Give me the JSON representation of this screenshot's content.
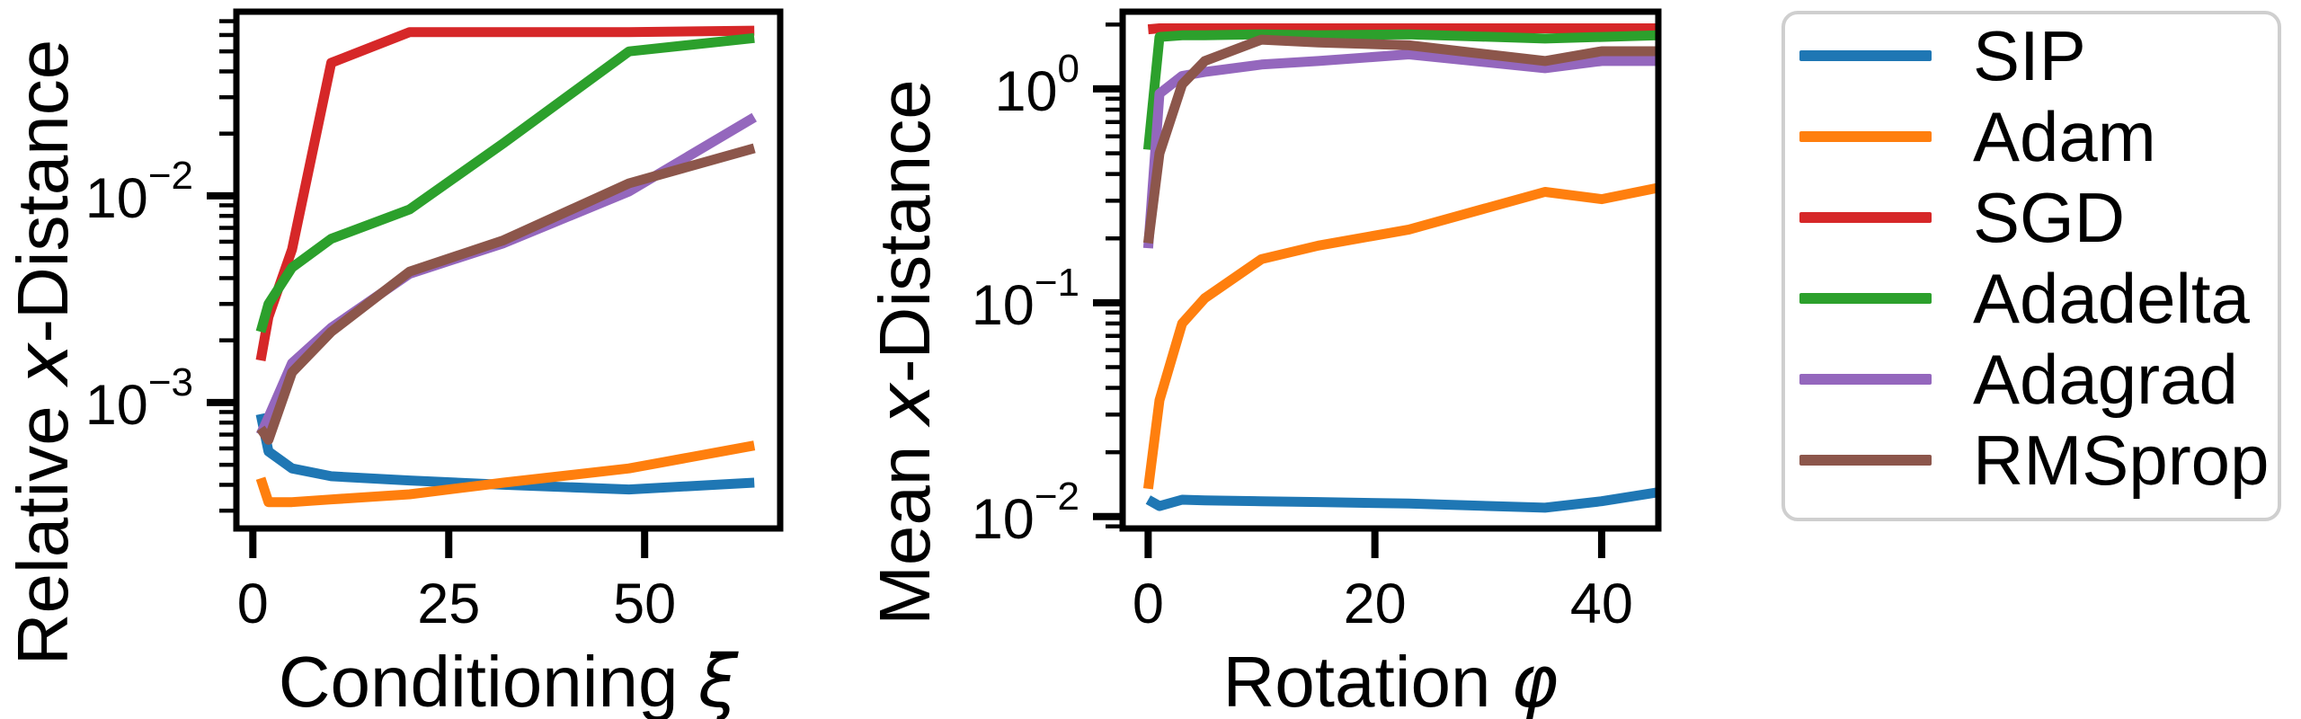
{
  "figure": {
    "background": "#ffffff",
    "text_color": "#000000"
  },
  "legend": {
    "position": "right",
    "border_color": "#cfcfcf",
    "entries": [
      {
        "label": "SIP",
        "color": "#1f77b4"
      },
      {
        "label": "Adam",
        "color": "#ff7f0e"
      },
      {
        "label": "SGD",
        "color": "#d62728"
      },
      {
        "label": "Adadelta",
        "color": "#2ca02c"
      },
      {
        "label": "Adagrad",
        "color": "#9467bd"
      },
      {
        "label": "RMSprop",
        "color": "#8c564b"
      }
    ]
  },
  "chart_data": [
    {
      "type": "line",
      "title": "",
      "xlabel": "Conditioning ξ",
      "ylabel": "Relative x-Distance",
      "xlabel_parts": [
        [
          "Conditioning ",
          false
        ],
        [
          "ξ",
          true
        ]
      ],
      "ylabel_parts": [
        [
          "Relative ",
          false
        ],
        [
          "x",
          true
        ],
        [
          "-Distance",
          false
        ]
      ],
      "xscale": "linear",
      "yscale": "log",
      "grid": false,
      "xlim": [
        -2.1,
        67.3
      ],
      "ylim": [
        0.000246,
        0.0778
      ],
      "xticks": [
        0,
        25,
        50
      ],
      "ytick_exponents": [
        -2,
        -3
      ],
      "x": [
        1,
        2,
        5,
        10,
        20,
        32,
        48,
        64
      ],
      "series": [
        {
          "name": "SIP",
          "color": "#1f77b4",
          "values": [
            0.00088,
            0.00058,
            0.00048,
            0.00044,
            0.00042,
            0.0004,
            0.00038,
            0.00041
          ]
        },
        {
          "name": "Adam",
          "color": "#ff7f0e",
          "values": [
            0.00043,
            0.00033,
            0.00033,
            0.00034,
            0.00036,
            0.00041,
            0.00048,
            0.00062
          ]
        },
        {
          "name": "SGD",
          "color": "#d62728",
          "values": [
            0.0016,
            0.0026,
            0.0055,
            0.044,
            0.062,
            0.062,
            0.062,
            0.063
          ]
        },
        {
          "name": "Adadelta",
          "color": "#2ca02c",
          "values": [
            0.0022,
            0.003,
            0.0045,
            0.0062,
            0.0086,
            0.018,
            0.05,
            0.058
          ]
        },
        {
          "name": "Adagrad",
          "color": "#9467bd",
          "values": [
            0.0007,
            0.00085,
            0.00155,
            0.0023,
            0.0042,
            0.0059,
            0.0105,
            0.024
          ]
        },
        {
          "name": "RMSprop",
          "color": "#8c564b",
          "values": [
            0.00075,
            0.00066,
            0.0014,
            0.0022,
            0.0043,
            0.0061,
            0.0115,
            0.017
          ]
        }
      ]
    },
    {
      "type": "line",
      "title": "",
      "xlabel": "Rotation φ",
      "ylabel": "Mean x-Distance",
      "xlabel_parts": [
        [
          "Rotation ",
          false
        ],
        [
          "φ",
          true
        ]
      ],
      "ylabel_parts": [
        [
          "Mean ",
          false
        ],
        [
          "x",
          true
        ],
        [
          "-Distance",
          false
        ]
      ],
      "xscale": "linear",
      "yscale": "log",
      "grid": false,
      "xlim": [
        -2.25,
        45
      ],
      "ylim": [
        0.0088,
        2.297
      ],
      "xticks": [
        0,
        20,
        40
      ],
      "ytick_exponents": [
        0,
        -1,
        -2
      ],
      "x": [
        0,
        1,
        3,
        5,
        10,
        15,
        23,
        35,
        40,
        45
      ],
      "series": [
        {
          "name": "SIP",
          "color": "#1f77b4",
          "values": [
            0.012,
            0.0112,
            0.012,
            0.0119,
            0.0118,
            0.0117,
            0.0115,
            0.011,
            0.0118,
            0.013
          ]
        },
        {
          "name": "Adam",
          "color": "#ff7f0e",
          "values": [
            0.0135,
            0.035,
            0.08,
            0.105,
            0.16,
            0.185,
            0.22,
            0.33,
            0.305,
            0.345
          ]
        },
        {
          "name": "SGD",
          "color": "#d62728",
          "values": [
            1.9,
            1.92,
            1.92,
            1.92,
            1.92,
            1.92,
            1.92,
            1.92,
            1.92,
            1.92
          ]
        },
        {
          "name": "Adadelta",
          "color": "#2ca02c",
          "values": [
            0.52,
            1.75,
            1.78,
            1.78,
            1.8,
            1.78,
            1.8,
            1.72,
            1.75,
            1.78
          ]
        },
        {
          "name": "Adagrad",
          "color": "#9467bd",
          "values": [
            0.18,
            0.95,
            1.15,
            1.2,
            1.3,
            1.35,
            1.45,
            1.25,
            1.35,
            1.35
          ]
        },
        {
          "name": "RMSprop",
          "color": "#8c564b",
          "values": [
            0.19,
            0.5,
            1.05,
            1.35,
            1.7,
            1.65,
            1.6,
            1.35,
            1.5,
            1.5
          ]
        }
      ]
    }
  ]
}
